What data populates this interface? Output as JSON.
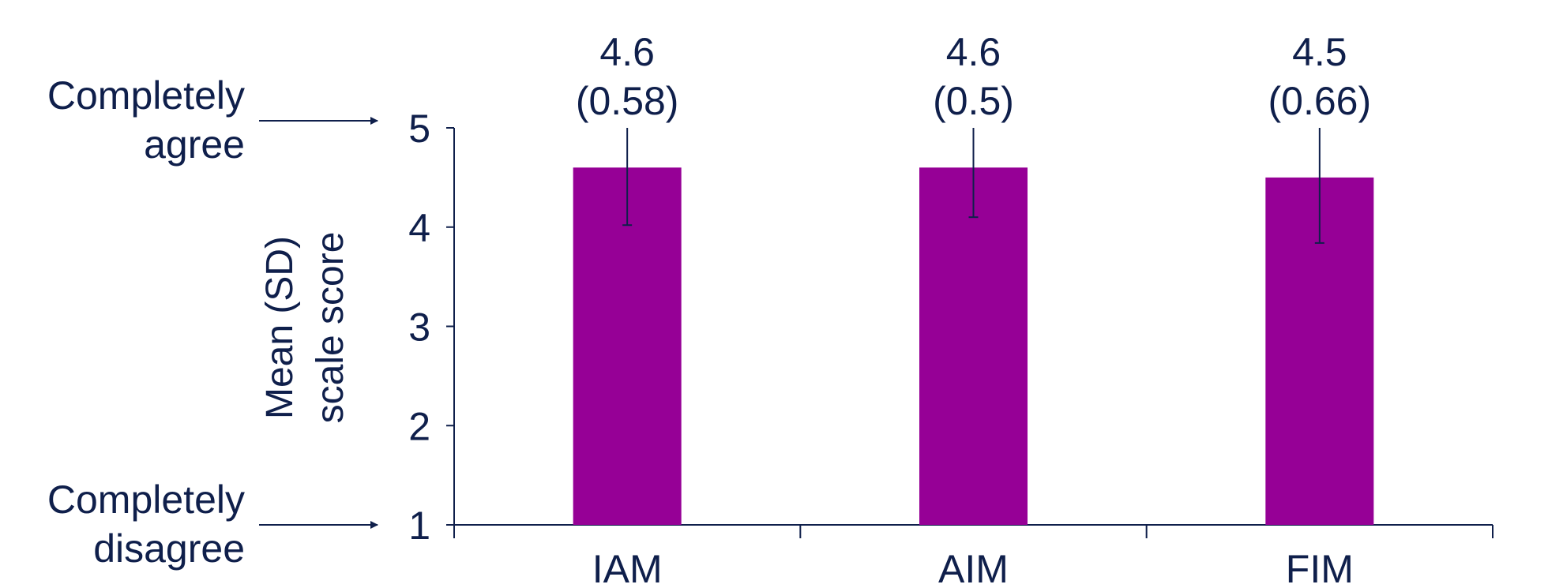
{
  "chart_data": {
    "type": "bar",
    "categories": [
      "IAM",
      "AIM",
      "FIM"
    ],
    "values": [
      4.6,
      4.6,
      4.5
    ],
    "sd": [
      0.58,
      0.5,
      0.66
    ],
    "error_low": [
      4.02,
      4.1,
      3.84
    ],
    "error_high": [
      5.0,
      5.0,
      5.0
    ],
    "data_labels": [
      {
        "mean": "4.6",
        "sd": "(0.58)"
      },
      {
        "mean": "4.6",
        "sd": "(0.5)"
      },
      {
        "mean": "4.5",
        "sd": "(0.66)"
      }
    ],
    "ylabel_line1": "Mean (SD)",
    "ylabel_line2": "scale score",
    "ylim": [
      1,
      5
    ],
    "yticks": [
      "1",
      "2",
      "3",
      "4",
      "5"
    ],
    "top_anchor": {
      "line1": "Completely",
      "line2": "agree"
    },
    "bottom_anchor": {
      "line1": "Completely",
      "line2": "disagree"
    },
    "grid": false,
    "legend": "none",
    "colors": {
      "bar": "#960096",
      "text": "#0f1f4b",
      "axis": "#0f1f4b"
    }
  }
}
